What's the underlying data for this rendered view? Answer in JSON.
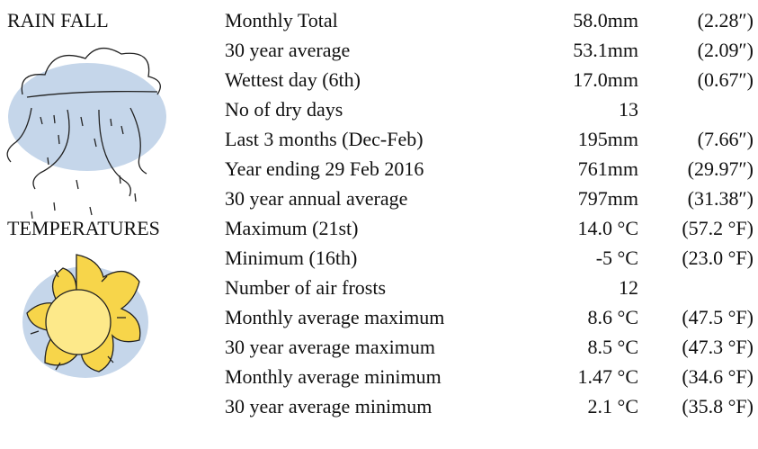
{
  "sections": [
    {
      "title": "RAIN FALL",
      "rows": [
        {
          "label": "Monthly Total",
          "value": "58.0mm",
          "imperial": "(2.28″)"
        },
        {
          "label": "30 year average",
          "value": "53.1mm",
          "imperial": "(2.09″)"
        },
        {
          "label": "Wettest day (6th)",
          "value": "17.0mm",
          "imperial": "(0.67″)"
        },
        {
          "label": "No of dry days",
          "value": "13"
        },
        {
          "label": "Last 3 months (Dec-Feb)",
          "value": "195mm",
          "imperial": "(7.66″)"
        },
        {
          "label": "Year ending 29 Feb 2016",
          "value": "761mm",
          "imperial": "(29.97″)"
        },
        {
          "label": "30 year annual average",
          "value": "797mm",
          "imperial": "(31.38″)"
        }
      ]
    },
    {
      "title": "TEMPERATURES",
      "rows": [
        {
          "label": "Maximum (21st)",
          "value": "14.0 °C",
          "imperial": "(57.2 °F)"
        },
        {
          "label": "Minimum (16th)",
          "value": "-5 °C",
          "imperial": "(23.0 °F)"
        },
        {
          "label": "Number of air frosts",
          "value": "12"
        },
        {
          "label": "Monthly average maximum",
          "value": "8.6 °C",
          "imperial": "(47.5 °F)"
        },
        {
          "label": "30 year average maximum",
          "value": "8.5 °C",
          "imperial": "(47.3 °F)"
        },
        {
          "label": "Monthly average minimum",
          "value": "1.47 °C",
          "imperial": "(34.6 °F)"
        },
        {
          "label": "30 year average minimum",
          "value": "2.1 °C",
          "imperial": "(35.8 °F)"
        }
      ]
    }
  ]
}
